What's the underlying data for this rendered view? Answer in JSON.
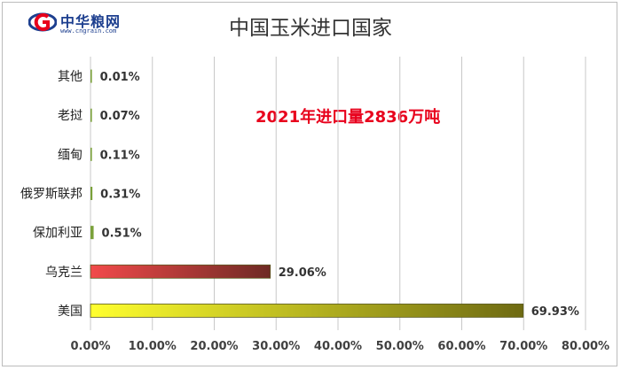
{
  "header": {
    "logo_text": "中华粮网",
    "logo_url": "www.cngrain.com"
  },
  "colors": {
    "grid": "#c8c8c8",
    "axis_text": "#404040",
    "bar_top": "#7aa13a",
    "ukraine_from": "#f24a4a",
    "ukraine_to": "#6e2a24",
    "usa_from": "#ffff2e",
    "usa_to": "#6e6a12",
    "annotation": "#e8001c"
  },
  "chart_data": {
    "type": "bar",
    "orientation": "horizontal",
    "title": "中国玉米进口国家",
    "annotation": "2021年进口量2836万吨",
    "categories": [
      "其他",
      "老挝",
      "缅甸",
      "俄罗斯联邦",
      "保加利亚",
      "乌克兰",
      "美国"
    ],
    "values": [
      0.01,
      0.07,
      0.11,
      0.31,
      0.51,
      29.06,
      69.93
    ],
    "value_labels": [
      "0.01%",
      "0.07%",
      "0.11%",
      "0.31%",
      "0.51%",
      "29.06%",
      "69.93%"
    ],
    "x_ticks": [
      "0.00%",
      "10.00%",
      "20.00%",
      "30.00%",
      "40.00%",
      "50.00%",
      "60.00%",
      "70.00%",
      "80.00%"
    ],
    "xlim": [
      0,
      80
    ],
    "grid": true,
    "legend": "none"
  }
}
